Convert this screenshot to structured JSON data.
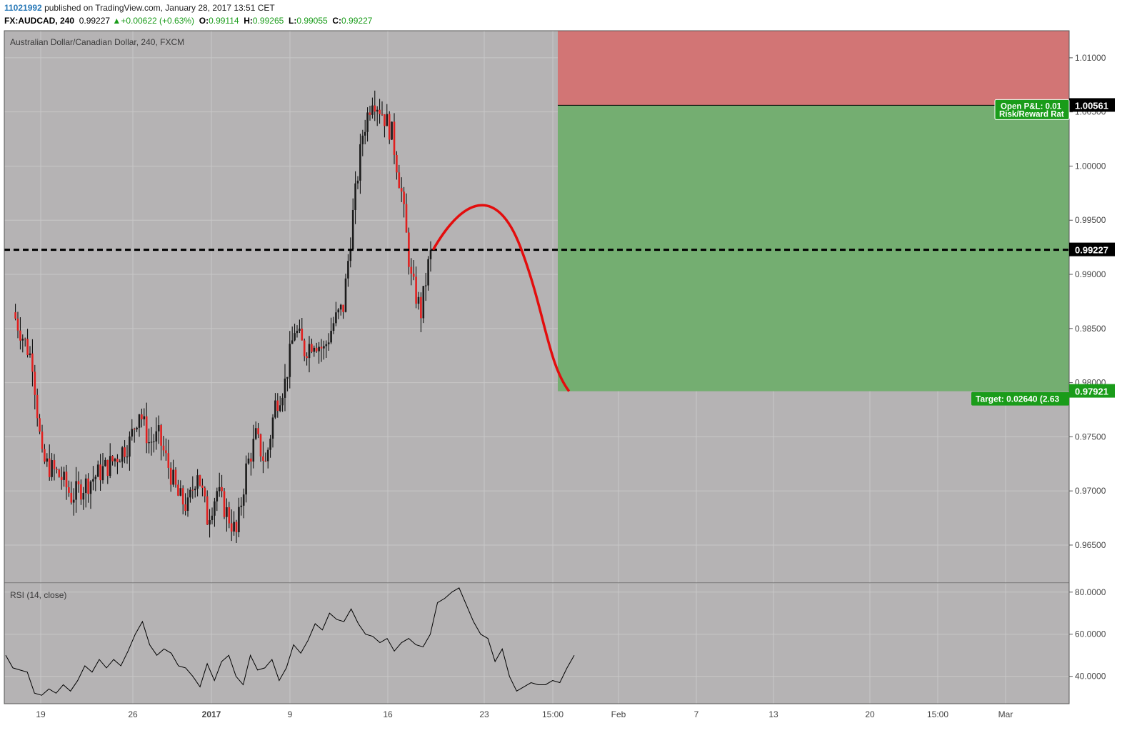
{
  "header": {
    "author": "11021992",
    "published": "published on TradingView.com, January 28, 2017 13:51 CET",
    "symbol": "FX:AUDCAD, 240",
    "last": "0.99227",
    "change": "+0.00622 (+0.63%)",
    "o_label": "O:",
    "o": "0.99114",
    "h_label": "H:",
    "h": "0.99265",
    "l_label": "L:",
    "l": "0.99055",
    "c_label": "C:",
    "c": "0.99227"
  },
  "chart_data": [
    {
      "type": "candlestick",
      "title": "Australian Dollar/Canadian Dollar, 240, FXCM",
      "ylim": [
        0.9615,
        1.0125
      ],
      "y_ticks": [
        "1.01000",
        "1.00500",
        "1.00000",
        "0.99500",
        "0.99000",
        "0.98500",
        "0.98000",
        "0.97500",
        "0.97000",
        "0.96500"
      ],
      "x_ticks": [
        "19",
        "26",
        "2017",
        "9",
        "16",
        "23",
        "15:00",
        "Feb",
        "7",
        "13",
        "20",
        "15:00",
        "Mar"
      ],
      "price_path": [
        [
          "Dec 16",
          0.9865
        ],
        [
          "Dec 18",
          0.982
        ],
        [
          "Dec 19",
          0.9728
        ],
        [
          "Dec 21",
          0.9712
        ],
        [
          "Dec 22",
          0.9695
        ],
        [
          "Dec 24",
          0.971
        ],
        [
          "Dec 26",
          0.9725
        ],
        [
          "Dec 28",
          0.9745
        ],
        [
          "Dec 29",
          0.9775
        ],
        [
          "Dec 30",
          0.9745
        ],
        [
          "Dec 31",
          0.975
        ],
        [
          "Jan 2",
          0.9695
        ],
        [
          "Jan 3",
          0.9685
        ],
        [
          "Jan 4",
          0.972
        ],
        [
          "Jan 5",
          0.9675
        ],
        [
          "Jan 6",
          0.97
        ],
        [
          "Jan 8",
          0.966
        ],
        [
          "Jan 9",
          0.972
        ],
        [
          "Jan 10",
          0.975
        ],
        [
          "Jan 11",
          0.9725
        ],
        [
          "Jan 12",
          0.978
        ],
        [
          "Jan 13",
          0.98
        ],
        [
          "Jan 14",
          0.985
        ],
        [
          "Jan 15",
          0.983
        ],
        [
          "Jan 16",
          0.984
        ],
        [
          "Jan 17",
          0.983
        ],
        [
          "Jan 18",
          0.9855
        ],
        [
          "Jan 19",
          0.987
        ],
        [
          "Jan 20",
          0.9955
        ],
        [
          "Jan 21",
          1.003
        ],
        [
          "Jan 22",
          1.0065
        ],
        [
          "Jan 23",
          1.005
        ],
        [
          "Jan 24",
          1.003
        ],
        [
          "Jan 25",
          0.9975
        ],
        [
          "Jan 26",
          0.9895
        ],
        [
          "Jan 27",
          0.9865
        ],
        [
          "Jan 28",
          0.99227
        ]
      ],
      "last_price": 0.99227,
      "position": {
        "stop": 1.00561,
        "stop_zone_top": 1.0125,
        "target": 0.97921,
        "entry": 0.99227,
        "open_pnl_label": "Open P&L: 0.01",
        "risk_reward_label": "Risk/Reward Rat",
        "target_label": "Target: 0.02640 (2.63"
      },
      "forecast_curve": [
        [
          "Jan 28",
          0.99227
        ],
        [
          "Feb 2",
          0.9965
        ],
        [
          "Feb 6",
          0.9925
        ],
        [
          "Feb 11",
          0.9792
        ]
      ]
    },
    {
      "type": "line",
      "title": "RSI (14, close)",
      "ylim": [
        27,
        84
      ],
      "y_ticks": [
        "80.0000",
        "60.0000",
        "40.0000"
      ],
      "series": [
        {
          "values": [
            50,
            44,
            43,
            42,
            32,
            31,
            34,
            32,
            36,
            33,
            38,
            45,
            42,
            48,
            44,
            48,
            45,
            52,
            60,
            66,
            55,
            50,
            53,
            51,
            45,
            44,
            40,
            35,
            46,
            38,
            47,
            50,
            40,
            36,
            50,
            43,
            44,
            48,
            38,
            44,
            55,
            51,
            57,
            65,
            62,
            70,
            67,
            66,
            72,
            65,
            60,
            59,
            56,
            58,
            52,
            56,
            58,
            55,
            54,
            60,
            75,
            77,
            80,
            82,
            74,
            66,
            60,
            58,
            47,
            53,
            40,
            33,
            35,
            37,
            36,
            36,
            38,
            37,
            44,
            50
          ]
        }
      ]
    }
  ]
}
